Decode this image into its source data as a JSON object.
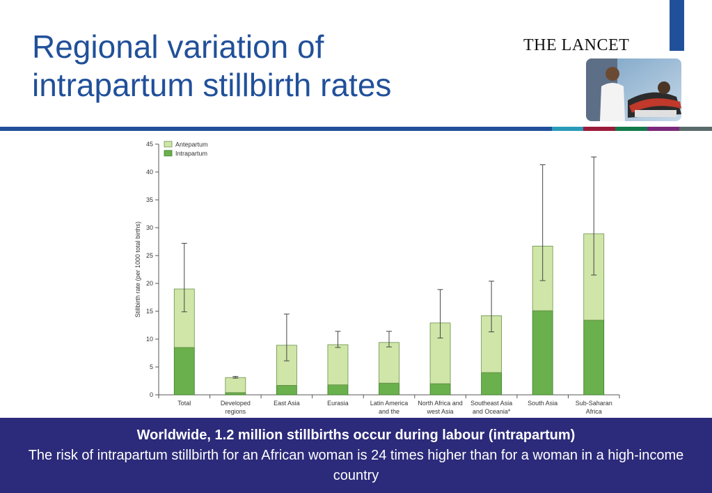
{
  "slide": {
    "title_line1": "Regional variation of",
    "title_line2": "intrapartum stillbirth rates",
    "logo_text": "THE LANCET",
    "colors": {
      "title": "#21509a",
      "rule": "#21509a",
      "footer_bg": "#2c2a7a",
      "rule_segments": [
        "#2a9bb8",
        "#9b1b3a",
        "#127a4a",
        "#7a2a7a",
        "#5a6a6a"
      ]
    }
  },
  "footer": {
    "headline": "Worldwide, 1.2 million stillbirths occur during labour (intrapartum)",
    "body": "The risk of intrapartum stillbirth for an African woman is 24 times higher than for a woman in a high-income country"
  },
  "chart_data": {
    "type": "bar",
    "stacked": true,
    "ylabel": "Stillbirth rate (per 1000 total births)",
    "ylim": [
      0,
      45
    ],
    "yticks": [
      0,
      5,
      10,
      15,
      20,
      25,
      30,
      35,
      40,
      45
    ],
    "grid": false,
    "legend_position": "top-left",
    "categories": [
      [
        "Total"
      ],
      [
        "Developed",
        "regions"
      ],
      [
        "East Asia"
      ],
      [
        "Eurasia"
      ],
      [
        "Latin America",
        "and the"
      ],
      [
        "North Africa and",
        "west Asia"
      ],
      [
        "Southeast Asia",
        "and Oceania*"
      ],
      [
        "South Asia"
      ],
      [
        "Sub-Saharan",
        "Africa"
      ]
    ],
    "series": [
      {
        "name": "Intrapartum",
        "color": "#6ab04c",
        "values": [
          8.5,
          0.4,
          1.7,
          1.8,
          2.1,
          2.0,
          4.0,
          15.1,
          13.4
        ]
      },
      {
        "name": "Antepartum",
        "color": "#cfe6a8",
        "values": [
          10.5,
          2.7,
          7.2,
          7.2,
          7.3,
          10.9,
          10.2,
          11.6,
          15.5
        ]
      }
    ],
    "error_bars": [
      {
        "low": 14.9,
        "high": 27.2
      },
      {
        "low": 3.0,
        "high": 3.3
      },
      {
        "low": 6.1,
        "high": 14.5
      },
      {
        "low": 8.5,
        "high": 11.4
      },
      {
        "low": 8.6,
        "high": 11.4
      },
      {
        "low": 10.2,
        "high": 18.9
      },
      {
        "low": 11.3,
        "high": 20.4
      },
      {
        "low": 20.5,
        "high": 41.3
      },
      {
        "low": 21.5,
        "high": 42.7
      }
    ]
  }
}
